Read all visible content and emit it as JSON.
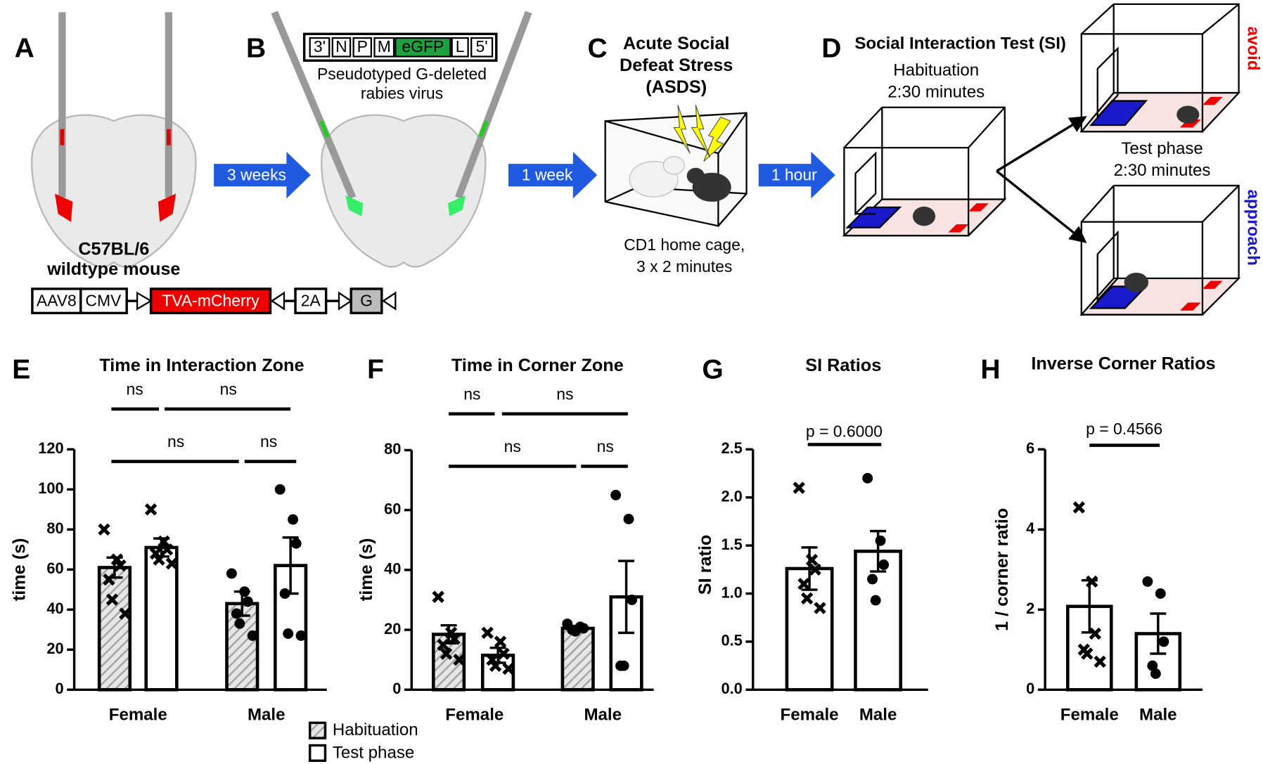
{
  "diagram": {
    "panel_labels": [
      "A",
      "B",
      "C",
      "D"
    ],
    "mouse_strain": [
      "C57BL/6",
      "wildtype mouse"
    ],
    "aav_construct": [
      "AAV8",
      "CMV",
      "TVA-mCherry",
      "2A",
      "G"
    ],
    "intervals": [
      "3 weeks",
      "1 week",
      "1 hour"
    ],
    "rabies_genome": [
      "3'",
      "N",
      "P",
      "M",
      "eGFP",
      "L",
      "5'"
    ],
    "rabies_caption": [
      "Pseudotyped G-deleted",
      "rabies virus"
    ],
    "asds_title": [
      "Acute Social",
      "Defeat Stress",
      "(ASDS)"
    ],
    "asds_caption": [
      "CD1 home cage,",
      "3 x 2 minutes"
    ],
    "si_title": "Social Interaction Test (SI)",
    "habituation": [
      "Habituation",
      "2:30 minutes"
    ],
    "test_phase": [
      "Test phase",
      "2:30 minutes"
    ],
    "outcomes": [
      "avoid",
      "approach"
    ]
  },
  "chart_data": [
    {
      "type": "bar",
      "panel": "E",
      "title": "Time in Interaction Zone",
      "ylabel": "time (s)",
      "categories": [
        "Female",
        "Male"
      ],
      "markers": [
        "x",
        "circle"
      ],
      "ylim": [
        0,
        120
      ],
      "yticks": [
        0,
        20,
        40,
        60,
        80,
        100,
        120
      ],
      "annotations": [
        "ns",
        "ns",
        "ns",
        "ns"
      ],
      "series": [
        {
          "name": "Habituation",
          "hatch": true,
          "values": [
            61,
            43
          ],
          "errors": [
            5,
            6
          ],
          "points": [
            [
              80,
              65,
              62,
              55,
              45,
              38
            ],
            [
              58,
              49,
              44,
              38,
              33,
              27
            ]
          ]
        },
        {
          "name": "Test phase",
          "hatch": false,
          "values": [
            71,
            62
          ],
          "errors": [
            4.5,
            14
          ],
          "points": [
            [
              90,
              74,
              70,
              68,
              65,
              63
            ],
            [
              100,
              85,
              73,
              48,
              28,
              27
            ]
          ]
        }
      ]
    },
    {
      "type": "bar",
      "panel": "F",
      "title": "Time in Corner Zone",
      "ylabel": "time (s)",
      "categories": [
        "Female",
        "Male"
      ],
      "markers": [
        "x",
        "circle"
      ],
      "ylim": [
        0,
        80
      ],
      "yticks": [
        0,
        20,
        40,
        60,
        80
      ],
      "annotations": [
        "ns",
        "ns",
        "ns",
        "ns"
      ],
      "series": [
        {
          "hatch": true,
          "values": [
            18.5,
            20.5
          ],
          "errors": [
            3,
            0.8
          ],
          "points": [
            [
              31,
              19,
              17,
              15,
              12,
              10
            ],
            [
              22,
              21,
              20.5,
              20,
              19.5
            ]
          ]
        },
        {
          "hatch": false,
          "values": [
            11.5,
            31
          ],
          "errors": [
            2.5,
            12
          ],
          "points": [
            [
              19,
              16,
              12,
              10,
              8,
              7
            ],
            [
              65,
              57,
              30,
              8,
              8
            ]
          ]
        }
      ]
    },
    {
      "type": "bar",
      "panel": "G",
      "title": "SI Ratios",
      "ylabel": "SI ratio",
      "categories": [
        "Female",
        "Male"
      ],
      "markers": [
        "x",
        "circle"
      ],
      "ylim": [
        0,
        2.5
      ],
      "yticks": [
        {
          "value": 0,
          "label": "0.0"
        },
        0.5,
        {
          "value": 1,
          "label": "1.0"
        },
        1.5,
        {
          "value": 2,
          "label": "2.0"
        },
        2.5
      ],
      "annotations": [
        "p = 0.6000"
      ],
      "series": [
        {
          "hatch": false,
          "values": [
            1.26,
            1.44
          ],
          "errors": [
            0.22,
            0.21
          ],
          "points": [
            [
              2.1,
              1.35,
              1.25,
              1.1,
              0.95,
              0.85
            ],
            [
              2.2,
              1.55,
              1.3,
              1.15,
              0.93
            ]
          ]
        }
      ]
    },
    {
      "type": "bar",
      "panel": "H",
      "title": "Inverse Corner Ratios",
      "ylabel": "1 / corner ratio",
      "categories": [
        "Female",
        "Male"
      ],
      "markers": [
        "x",
        "circle"
      ],
      "ylim": [
        0,
        6
      ],
      "yticks": [
        0,
        2,
        4,
        6
      ],
      "annotations": [
        "p = 0.4566"
      ],
      "series": [
        {
          "hatch": false,
          "values": [
            2.08,
            1.4
          ],
          "errors": [
            0.65,
            0.5
          ],
          "points": [
            [
              4.55,
              2.7,
              1.4,
              1.0,
              0.9,
              0.7
            ],
            [
              2.7,
              2.4,
              1.2,
              0.6,
              0.4
            ]
          ]
        }
      ]
    }
  ]
}
